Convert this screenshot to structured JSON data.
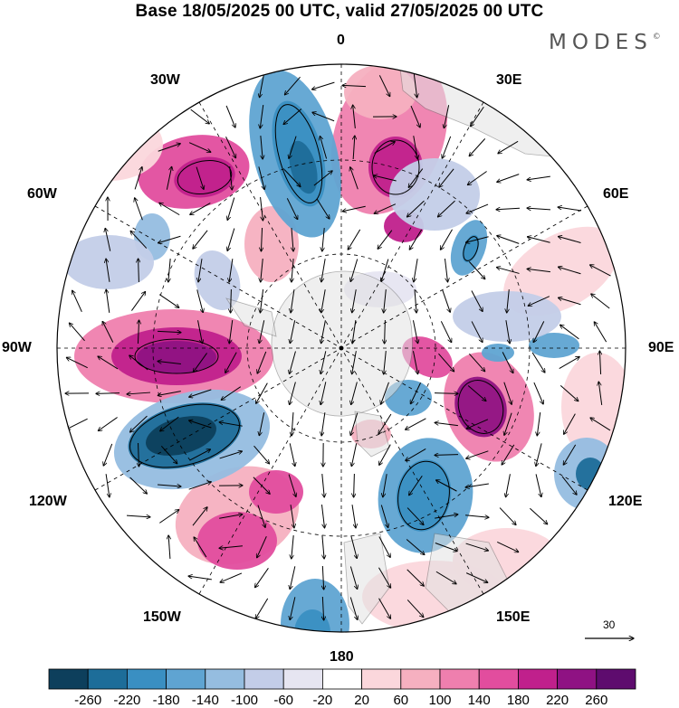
{
  "title": "Base 18/05/2025 00 UTC, valid 27/05/2025 00 UTC",
  "brand": "MODES",
  "brand_mark": "©",
  "longitude_labels": {
    "lon_0": "0",
    "lon_30e": "30E",
    "lon_60e": "60E",
    "lon_90e": "90E",
    "lon_120e": "120E",
    "lon_150e": "150E",
    "lon_180": "180",
    "lon_150w": "150W",
    "lon_120w": "120W",
    "lon_90w": "90W",
    "lon_60w": "60W",
    "lon_30w": "30W"
  },
  "reference_vector": {
    "label": "30"
  },
  "colorbar": {
    "ticks": [
      "-260",
      "-220",
      "-180",
      "-140",
      "-100",
      "-60",
      "-20",
      "20",
      "60",
      "100",
      "140",
      "180",
      "220",
      "260"
    ],
    "colors": [
      "#0d3f5c",
      "#1d6d99",
      "#3a8fc2",
      "#5fa4d2",
      "#95bde0",
      "#c3cde8",
      "#e6e5f1",
      "#ffffff",
      "#fbd7dc",
      "#f6b0c0",
      "#ef7fae",
      "#e24d9e",
      "#c0208c",
      "#8f1283",
      "#5e0c6e"
    ]
  },
  "colors": {
    "land": "#e2e2e2",
    "coast": "#707070",
    "grid": "#000000"
  }
}
